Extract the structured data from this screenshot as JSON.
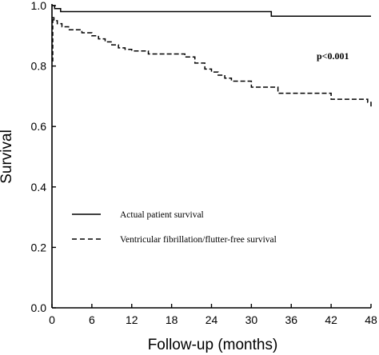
{
  "chart_data": {
    "type": "line",
    "title": "",
    "xlabel": "Follow-up (months)",
    "ylabel": "Survival",
    "xlim": [
      0,
      48
    ],
    "ylim": [
      0,
      1.0
    ],
    "x_ticks": [
      "0",
      "6",
      "12",
      "18",
      "24",
      "30",
      "36",
      "42",
      "48"
    ],
    "y_ticks": [
      "0.0",
      "0.2",
      "0.4",
      "0.6",
      "0.8",
      "1.0"
    ],
    "grid": false,
    "legend_position": "bottom-left",
    "annotation": "p<0.001",
    "series": [
      {
        "name": "Actual patient survival",
        "style": "solid",
        "color": "#000000",
        "x": [
          0,
          0.4,
          1.3,
          33,
          48
        ],
        "y": [
          1.0,
          0.99,
          0.98,
          0.965,
          0.965
        ]
      },
      {
        "name": "Ventricular fibrillation/flutter-free survival",
        "style": "dashed",
        "color": "#000000",
        "x": [
          0,
          0.3,
          0.8,
          1.5,
          2.5,
          4.5,
          6,
          7,
          8,
          9,
          10,
          11,
          12,
          14.5,
          20,
          21.5,
          23,
          24,
          25,
          26,
          27,
          30,
          34,
          42,
          47.5,
          48
        ],
        "y": [
          0.96,
          0.95,
          0.94,
          0.93,
          0.92,
          0.91,
          0.9,
          0.89,
          0.88,
          0.87,
          0.86,
          0.855,
          0.85,
          0.84,
          0.83,
          0.81,
          0.79,
          0.78,
          0.77,
          0.76,
          0.75,
          0.73,
          0.71,
          0.69,
          0.68,
          0.66
        ]
      }
    ]
  }
}
